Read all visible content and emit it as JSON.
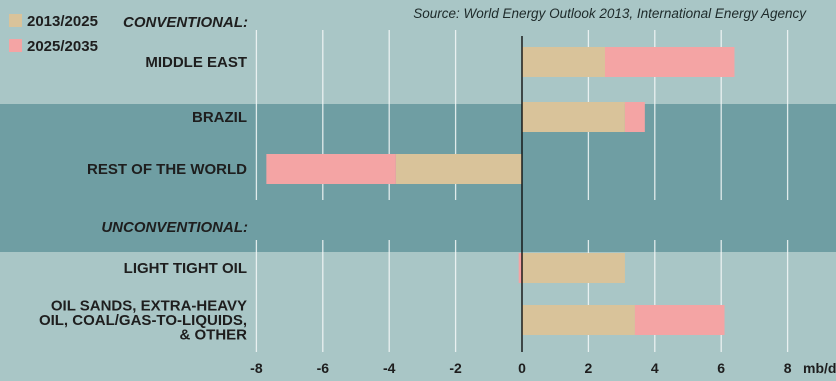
{
  "chart_data": {
    "type": "bar",
    "orientation": "horizontal",
    "stacked": true,
    "source": "Source: World Energy Outlook 2013, International Energy Agency",
    "unit_label": "mb/d",
    "xlim": [
      -8,
      8
    ],
    "xticks": [
      "-8",
      "-6",
      "-4",
      "-2",
      "0",
      "2",
      "4",
      "6",
      "8"
    ],
    "grid": true,
    "legend_position": "top-left",
    "groups": [
      {
        "heading": "CONVENTIONAL:",
        "categories": [
          "MIDDLE EAST",
          "BRAZIL",
          "REST OF THE WORLD"
        ]
      },
      {
        "heading": "UNCONVENTIONAL:",
        "categories": [
          "LIGHT TIGHT OIL",
          "OIL SANDS, EXTRA-HEAVY OIL, COAL/GAS-TO-LIQUIDS, & OTHER"
        ]
      }
    ],
    "category_lines": [
      [
        "MIDDLE EAST"
      ],
      [
        "BRAZIL"
      ],
      [
        "REST OF THE WORLD"
      ],
      [
        "LIGHT TIGHT OIL"
      ],
      [
        "OIL SANDS, EXTRA-HEAVY",
        "OIL, COAL/GAS-TO-LIQUIDS,",
        "& OTHER"
      ]
    ],
    "categories": [
      "MIDDLE EAST",
      "BRAZIL",
      "REST OF THE WORLD",
      "LIGHT TIGHT OIL",
      "OIL SANDS, EXTRA-HEAVY OIL, COAL/GAS-TO-LIQUIDS, & OTHER"
    ],
    "series": [
      {
        "name": "2013/2025",
        "color": "#d9c39a",
        "values": [
          2.5,
          3.1,
          -3.8,
          3.1,
          3.4
        ]
      },
      {
        "name": "2025/2035",
        "color": "#f4a4a4",
        "values": [
          3.9,
          0.6,
          -3.9,
          -0.1,
          2.7
        ]
      }
    ],
    "colors": {
      "background": "#a9c6c6",
      "band": "#6f9ea3",
      "grid": "#f4f8f8",
      "text": "#1e1e1e"
    }
  }
}
